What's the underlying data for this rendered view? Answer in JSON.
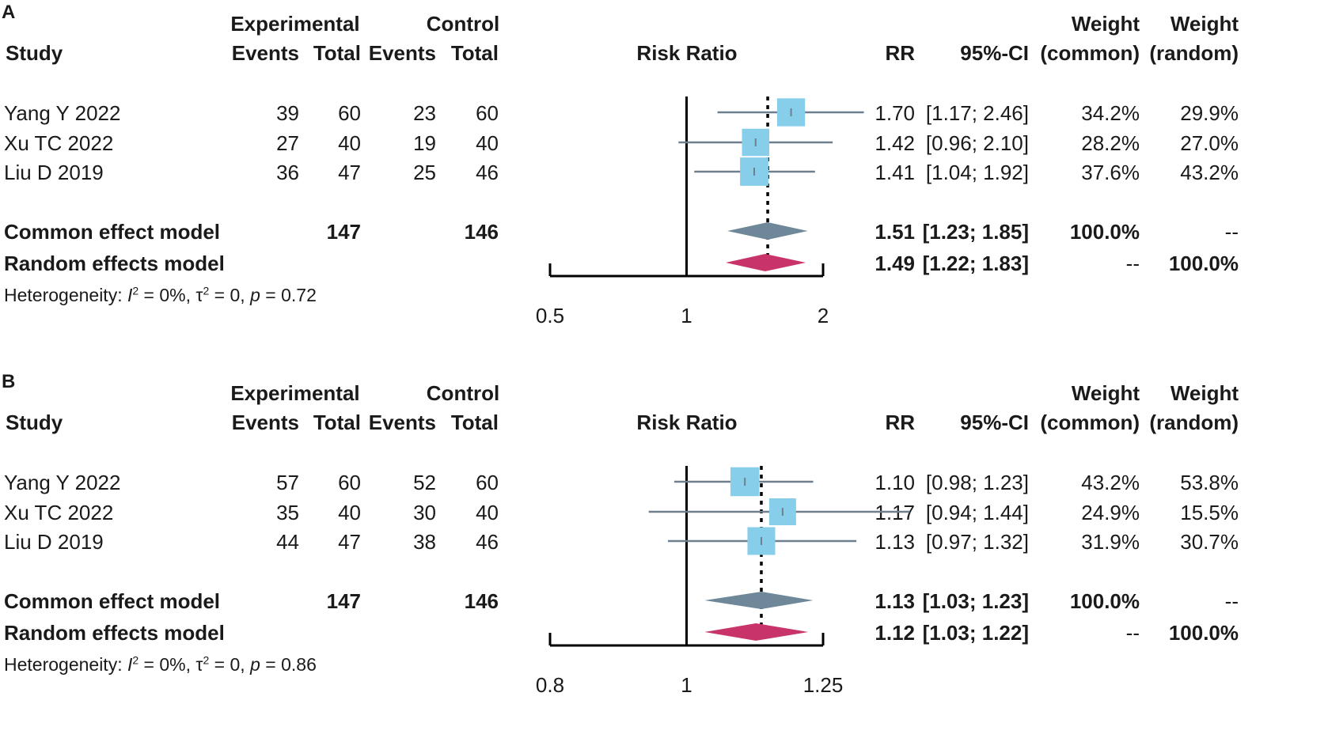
{
  "headers": {
    "study": "Study",
    "experimental": "Experimental",
    "control": "Control",
    "events": "Events",
    "total": "Total",
    "risk_ratio": "Risk Ratio",
    "rr": "RR",
    "ci": "95%-CI",
    "weight": "Weight",
    "weight_common": "(common)",
    "weight_random": "(random)"
  },
  "colors": {
    "square": "#87ceeb",
    "ci_line": "#6e7f8e",
    "common_diamond": "#6e8799",
    "random_diamond": "#c8346a",
    "axis": "#000000"
  },
  "chart_data": [
    {
      "type": "forest",
      "panel_label": "A",
      "title": "Risk Ratio",
      "x_scale": "log",
      "xlim": [
        0.5,
        2
      ],
      "xticks": [
        0.5,
        1,
        2
      ],
      "xtick_labels": [
        "0.5",
        "1",
        "2"
      ],
      "null_value": 1,
      "studies": [
        {
          "name": "Yang Y 2022",
          "exp_events": "39",
          "exp_total": "60",
          "ctrl_events": "23",
          "ctrl_total": "60",
          "rr": 1.7,
          "lower": 1.17,
          "upper": 2.46,
          "rr_text": "1.70",
          "ci_text": "[1.17; 2.46]",
          "w_common": "34.2%",
          "w_random": "29.9%",
          "w_value": 34.2
        },
        {
          "name": "Xu TC 2022",
          "exp_events": "27",
          "exp_total": "40",
          "ctrl_events": "19",
          "ctrl_total": "40",
          "rr": 1.42,
          "lower": 0.96,
          "upper": 2.1,
          "rr_text": "1.42",
          "ci_text": "[0.96; 2.10]",
          "w_common": "28.2%",
          "w_random": "27.0%",
          "w_value": 28.2
        },
        {
          "name": "Liu D 2019",
          "exp_events": "36",
          "exp_total": "47",
          "ctrl_events": "25",
          "ctrl_total": "46",
          "rr": 1.41,
          "lower": 1.04,
          "upper": 1.92,
          "rr_text": "1.41",
          "ci_text": "[1.04; 1.92]",
          "w_common": "37.6%",
          "w_random": "43.2%",
          "w_value": 37.6
        }
      ],
      "common": {
        "name": "Common effect model",
        "exp_total": "147",
        "ctrl_total": "146",
        "rr": 1.51,
        "lower": 1.23,
        "upper": 1.85,
        "rr_text": "1.51",
        "ci_text": "[1.23; 1.85]",
        "w_common": "100.0%",
        "w_random": "--"
      },
      "random": {
        "name": "Random effects model",
        "rr": 1.49,
        "lower": 1.22,
        "upper": 1.83,
        "rr_text": "1.49",
        "ci_text": "[1.22; 1.83]",
        "w_common": "--",
        "w_random": "100.0%"
      },
      "heterogeneity": {
        "prefix": "Heterogeneity: ",
        "i_sym": "I",
        "i_val": " = 0%, ",
        "tau_sym": "τ",
        "tau_val": " = 0, ",
        "p_sym": "p",
        "p_val": " = 0.72",
        "sup": "2"
      }
    },
    {
      "type": "forest",
      "panel_label": "B",
      "title": "Risk Ratio",
      "x_scale": "log",
      "xlim": [
        0.8,
        1.25
      ],
      "xticks": [
        0.8,
        1,
        1.25
      ],
      "xtick_labels": [
        "0.8",
        "1",
        "1.25"
      ],
      "null_value": 1,
      "studies": [
        {
          "name": "Yang Y 2022",
          "exp_events": "57",
          "exp_total": "60",
          "ctrl_events": "52",
          "ctrl_total": "60",
          "rr": 1.1,
          "lower": 0.98,
          "upper": 1.23,
          "rr_text": "1.10",
          "ci_text": "[0.98; 1.23]",
          "w_common": "43.2%",
          "w_random": "53.8%",
          "w_value": 43.2
        },
        {
          "name": "Xu TC 2022",
          "exp_events": "35",
          "exp_total": "40",
          "ctrl_events": "30",
          "ctrl_total": "40",
          "rr": 1.17,
          "lower": 0.94,
          "upper": 1.44,
          "rr_text": "1.17",
          "ci_text": "[0.94; 1.44]",
          "w_common": "24.9%",
          "w_random": "15.5%",
          "w_value": 24.9
        },
        {
          "name": "Liu D 2019",
          "exp_events": "44",
          "exp_total": "47",
          "ctrl_events": "38",
          "ctrl_total": "46",
          "rr": 1.13,
          "lower": 0.97,
          "upper": 1.32,
          "rr_text": "1.13",
          "ci_text": "[0.97; 1.32]",
          "w_common": "31.9%",
          "w_random": "30.7%",
          "w_value": 31.9
        }
      ],
      "common": {
        "name": "Common effect model",
        "exp_total": "147",
        "ctrl_total": "146",
        "rr": 1.13,
        "lower": 1.03,
        "upper": 1.23,
        "rr_text": "1.13",
        "ci_text": "[1.03; 1.23]",
        "w_common": "100.0%",
        "w_random": "--"
      },
      "random": {
        "name": "Random effects model",
        "rr": 1.12,
        "lower": 1.03,
        "upper": 1.22,
        "rr_text": "1.12",
        "ci_text": "[1.03; 1.22]",
        "w_common": "--",
        "w_random": "100.0%"
      },
      "heterogeneity": {
        "prefix": "Heterogeneity: ",
        "i_sym": "I",
        "i_val": " = 0%, ",
        "tau_sym": "τ",
        "tau_val": " = 0, ",
        "p_sym": "p",
        "p_val": " = 0.86",
        "sup": "2"
      }
    }
  ]
}
